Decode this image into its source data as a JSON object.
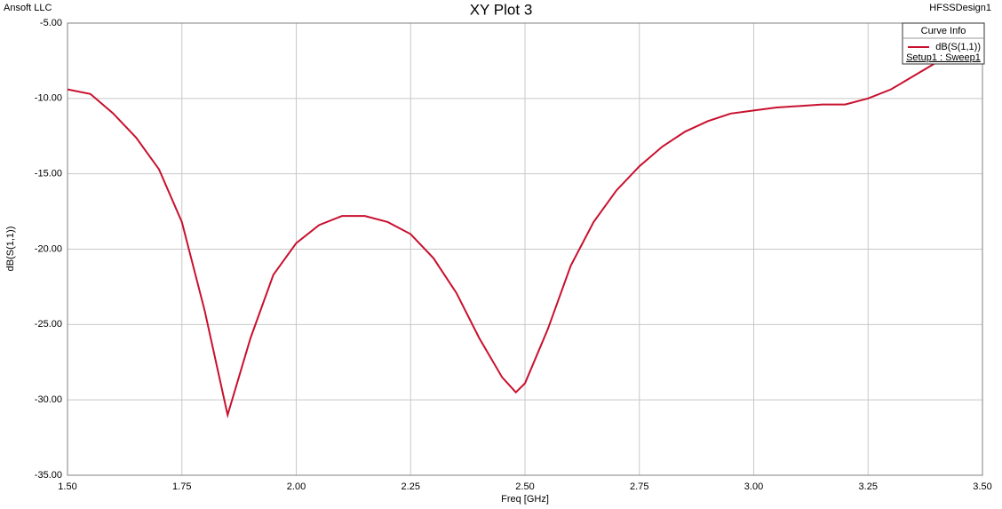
{
  "chart_data": {
    "type": "line",
    "title": "XY Plot 3",
    "left_label": "Ansoft LLC",
    "right_label": "HFSSDesign1",
    "x_label": "Freq [GHz]",
    "y_label": "dB(S(1,1))",
    "legend_title": "Curve Info",
    "legend_subtitle": "Setup1 : Sweep1",
    "x": [
      1.5,
      1.55,
      1.6,
      1.65,
      1.7,
      1.75,
      1.8,
      1.85,
      1.9,
      1.95,
      2.0,
      2.05,
      2.1,
      2.15,
      2.2,
      2.25,
      2.3,
      2.35,
      2.4,
      2.45,
      2.48,
      2.5,
      2.55,
      2.6,
      2.65,
      2.7,
      2.75,
      2.8,
      2.85,
      2.9,
      2.95,
      3.0,
      3.05,
      3.1,
      3.15,
      3.2,
      3.25,
      3.3,
      3.35,
      3.4,
      3.43
    ],
    "series": [
      {
        "name": "dB(S(1,1))",
        "color": "#c8102e",
        "values": [
          -9.4,
          -9.7,
          -11.0,
          -12.6,
          -14.7,
          -18.2,
          -24.1,
          -31.0,
          -25.9,
          -21.7,
          -19.6,
          -18.4,
          -17.8,
          -17.8,
          -18.2,
          -19.0,
          -20.6,
          -22.9,
          -25.9,
          -28.5,
          -29.5,
          -28.9,
          -25.3,
          -21.1,
          -18.2,
          -16.1,
          -14.5,
          -13.2,
          -12.2,
          -11.5,
          -11.0,
          -10.8,
          -10.6,
          -10.5,
          -10.4,
          -10.4,
          -10.0,
          -9.4,
          -8.5,
          -7.6,
          -7.0
        ]
      }
    ],
    "xlim": [
      1.5,
      3.5
    ],
    "xticks": [
      {
        "value": 1.5,
        "label": "1.50"
      },
      {
        "value": 1.75,
        "label": "1.75"
      },
      {
        "value": 2.0,
        "label": "2.00"
      },
      {
        "value": 2.25,
        "label": "2.25"
      },
      {
        "value": 2.5,
        "label": "2.50"
      },
      {
        "value": 2.75,
        "label": "2.75"
      },
      {
        "value": 3.0,
        "label": "3.00"
      },
      {
        "value": 3.25,
        "label": "3.25"
      },
      {
        "value": 3.5,
        "label": "3.50"
      }
    ],
    "ylim": [
      -35,
      -5
    ],
    "yticks": [
      {
        "value": -35,
        "label": "-35.00"
      },
      {
        "value": -30,
        "label": "-30.00"
      },
      {
        "value": -25,
        "label": "-25.00"
      },
      {
        "value": -20,
        "label": "-20.00"
      },
      {
        "value": -15,
        "label": "-15.00"
      },
      {
        "value": -10,
        "label": "-10.00"
      },
      {
        "value": -5,
        "label": "-5.00"
      }
    ],
    "grid": true
  }
}
